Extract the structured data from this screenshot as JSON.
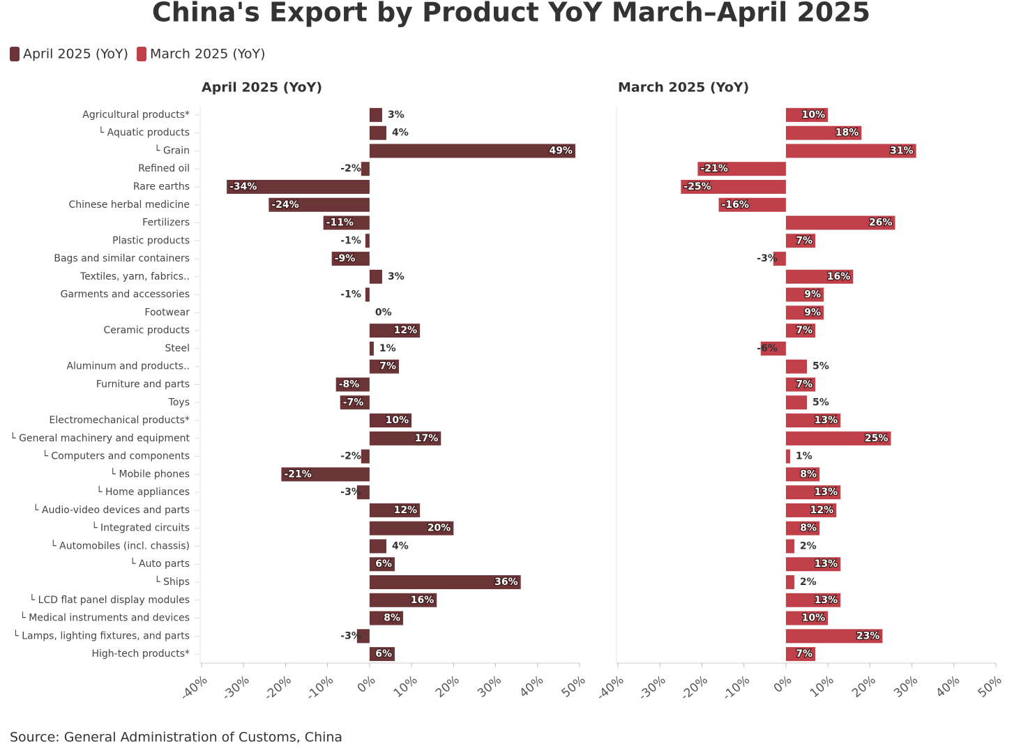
{
  "chart_data": {
    "type": "bar",
    "orientation": "horizontal",
    "title": "China's Export by Product YoY March–April 2025",
    "source": "Source: General Administration of Customs, China",
    "categories": [
      "Agricultural products*",
      "└ Aquatic products",
      "└ Grain",
      "Refined oil",
      "Rare earths",
      "Chinese herbal medicine",
      "Fertilizers",
      "Plastic products",
      "Bags and similar containers",
      "Textiles, yarn, fabrics..",
      "Garments and accessories",
      "Footwear",
      "Ceramic products",
      "Steel",
      "Aluminum and products..",
      "Furniture and parts",
      "Toys",
      "Electromechanical products*",
      "└ General machinery and equipment",
      "└ Computers and components",
      "└ Mobile phones",
      "└ Home appliances",
      "└ Audio-video devices and parts",
      "└ Integrated circuits",
      "└ Automobiles (incl. chassis)",
      "└ Auto parts",
      "└ Ships",
      "└ LCD flat panel display modules",
      "└ Medical instruments and devices",
      "└ Lamps, lighting fixtures, and parts",
      "High-tech products*"
    ],
    "series": [
      {
        "name": "April 2025 (YoY)",
        "color": "#6b3538",
        "values": [
          3,
          4,
          49,
          -2,
          -34,
          -24,
          -11,
          -1,
          -9,
          3,
          -1,
          0,
          12,
          1,
          7,
          -8,
          -7,
          10,
          17,
          -2,
          -21,
          -3,
          12,
          20,
          4,
          6,
          36,
          16,
          8,
          -3,
          6
        ],
        "value_labels": [
          "3%",
          "4%",
          "49%",
          "-2%",
          "-34%",
          "-24%",
          "-11%",
          "-1%",
          "-9%",
          "3%",
          "-1%",
          "0%",
          "12%",
          "1%",
          "7%",
          "-8%",
          "-7%",
          "10%",
          "17%",
          "-2%",
          "-21%",
          "-3%",
          "12%",
          "20%",
          "4%",
          "6%",
          "36%",
          "16%",
          "8%",
          "-3%",
          "6%"
        ]
      },
      {
        "name": "March 2025 (YoY)",
        "color": "#c0404a",
        "values": [
          10,
          18,
          31,
          -21,
          -25,
          -16,
          26,
          7,
          -3,
          16,
          9,
          9,
          7,
          -6,
          5,
          7,
          5,
          13,
          25,
          1,
          8,
          13,
          12,
          8,
          2,
          13,
          2,
          13,
          10,
          23,
          7
        ],
        "value_labels": [
          "10%",
          "18%",
          "31%",
          "-21%",
          "-25%",
          "-16%",
          "26%",
          "7%",
          "-3%",
          "16%",
          "9%",
          "9%",
          "7%",
          "-6%",
          "5%",
          "7%",
          "5%",
          "13%",
          "25%",
          "1%",
          "8%",
          "13%",
          "12%",
          "8%",
          "2%",
          "13%",
          "2%",
          "13%",
          "10%",
          "23%",
          "7%"
        ]
      }
    ],
    "xlim": [
      -40,
      50
    ],
    "xticks": [
      {
        "value": -40,
        "label": "-40%"
      },
      {
        "value": -30,
        "label": "-30%"
      },
      {
        "value": -20,
        "label": "-20%"
      },
      {
        "value": -10,
        "label": "-10%"
      },
      {
        "value": 0,
        "label": "0%"
      },
      {
        "value": 10,
        "label": "10%"
      },
      {
        "value": 20,
        "label": "20%"
      },
      {
        "value": 30,
        "label": "30%"
      },
      {
        "value": 40,
        "label": "40%"
      },
      {
        "value": 50,
        "label": "50%"
      }
    ]
  }
}
